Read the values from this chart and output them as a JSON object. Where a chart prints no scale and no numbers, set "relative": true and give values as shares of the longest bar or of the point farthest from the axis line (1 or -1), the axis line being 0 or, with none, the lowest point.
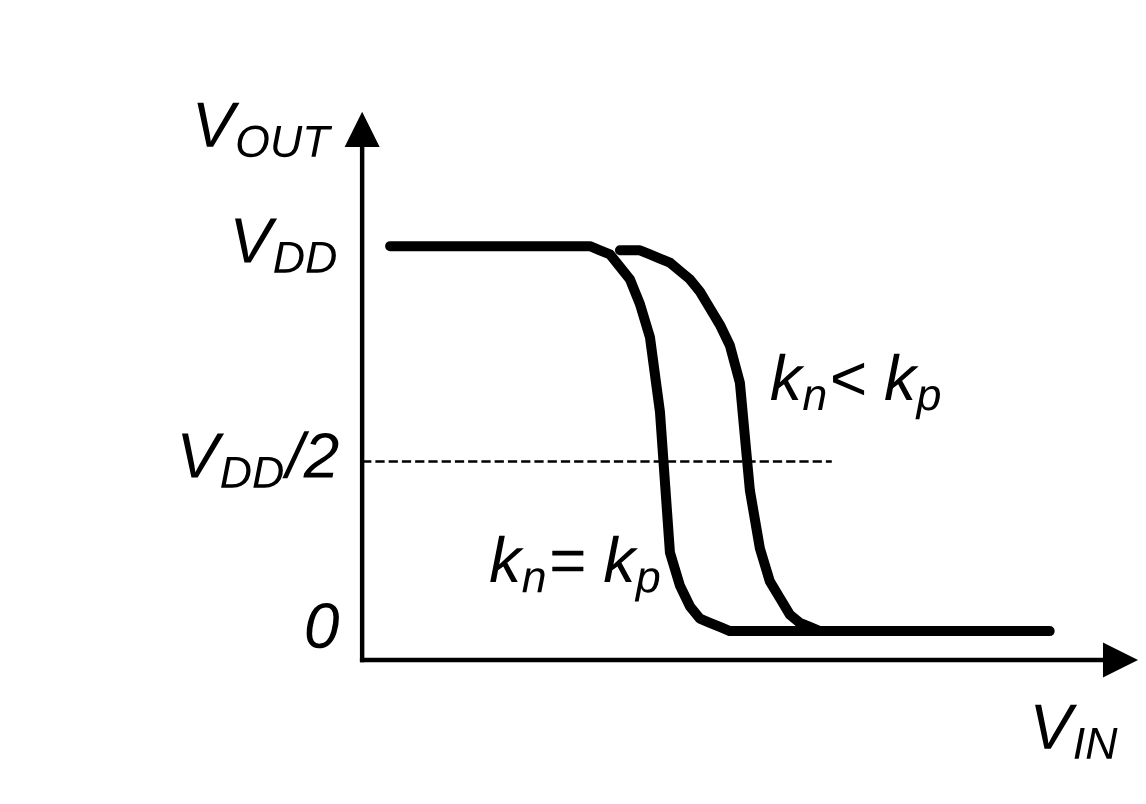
{
  "chart_data": {
    "type": "line",
    "relative": true,
    "xlabel": "V$_{IN}$",
    "ylabel": "V$_{OUT}$",
    "annotations": [
      "V$_{DD}$",
      "0"
    ],
    "categories": [
      null,
      null,
      null,
      null,
      null,
      null,
      null,
      null,
      null,
      null,
      null,
      null,
      null,
      null,
      null,
      null,
      null,
      null,
      null,
      null,
      null,
      null,
      null,
      null,
      null,
      null,
      null,
      null,
      null,
      null,
      null,
      null,
      null,
      null,
      null,
      null,
      null,
      null,
      null,
      null,
      null,
      null,
      null,
      null,
      null,
      null,
      null,
      null,
      null,
      null,
      null,
      null,
      null,
      null,
      null,
      null,
      null,
      null,
      null,
      null,
      null,
      null,
      null,
      null,
      null,
      null,
      null
    ],
    "series": [
      {
        "name": "k$_{n}$= k$_{p}$",
        "color": "#000000",
        "values": [
          1,
          1,
          1,
          1,
          1,
          1,
          1,
          1,
          1,
          1,
          1,
          1,
          1,
          1,
          1,
          1,
          1,
          1,
          1,
          1,
          1,
          0.99,
          0.98,
          0.95,
          0.92,
          0.86,
          0.78,
          0.6,
          0.26,
          0.18,
          0.13,
          0.1,
          0.09,
          0.08,
          0.07,
          0.07,
          0.07,
          0.07,
          0.07,
          0.07,
          0.07,
          0.07,
          0.07,
          0.07,
          0.07,
          0.07,
          0.07,
          0.07,
          0.07,
          0.07,
          0.07,
          0.07,
          0.07,
          0.07,
          0.07,
          0.07,
          0.07,
          0.07,
          0.07,
          0.07,
          0.07,
          0.07,
          0.07,
          0.07,
          0.07,
          0.07,
          0.07
        ]
      },
      {
        "name": "k$_{n}$< k$_{p}$",
        "color": "#000000",
        "values": [
          null,
          null,
          null,
          null,
          null,
          null,
          null,
          null,
          null,
          null,
          null,
          null,
          null,
          null,
          null,
          null,
          null,
          null,
          null,
          null,
          null,
          null,
          null,
          0.99,
          0.99,
          0.99,
          0.98,
          0.97,
          0.96,
          0.94,
          0.92,
          0.89,
          0.85,
          0.81,
          0.76,
          0.67,
          0.41,
          0.27,
          0.19,
          0.15,
          0.11,
          0.09,
          0.08,
          0.07,
          null,
          null,
          null,
          null,
          null,
          null,
          null,
          null,
          null,
          null,
          null,
          null,
          null,
          null,
          null,
          null,
          null,
          null,
          null,
          null,
          null,
          null,
          null
        ]
      }
    ],
    "ref_lines": [
      {
        "axis": "y",
        "value": 0.48,
        "label": "V$_{DD}$/2",
        "color": "#000000",
        "line_style": "dashed"
      }
    ],
    "legend": false,
    "line_style": "solid",
    "marker": "none"
  }
}
